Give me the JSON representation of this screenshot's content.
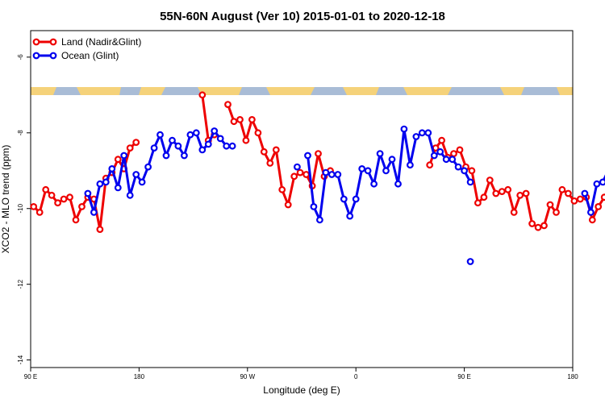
{
  "chart_data": {
    "type": "line",
    "title": "55N-60N August (Ver 10)   2015-01-01 to 2020-12-18",
    "xlabel": "Longitude (deg E)",
    "ylabel": "XCO2 - MLO trend (ppm)",
    "xlim": [
      90,
      450
    ],
    "ylim": [
      -14.2,
      -5.3
    ],
    "x_ticks": [
      {
        "value": 90,
        "label": "90 E"
      },
      {
        "value": 180,
        "label": "180"
      },
      {
        "value": 270,
        "label": "90 W"
      },
      {
        "value": 360,
        "label": "0"
      },
      {
        "value": 450,
        "label": "90 E"
      },
      {
        "value": 540,
        "label": "180"
      }
    ],
    "y_ticks": [
      {
        "value": -6,
        "label": "-6"
      },
      {
        "value": -8,
        "label": "-8"
      },
      {
        "value": -10,
        "label": "-10"
      },
      {
        "value": -12,
        "label": "-12"
      },
      {
        "value": -14,
        "label": "-14"
      }
    ],
    "grid": false,
    "legend": "top-left",
    "series": [
      {
        "name": "Land (Nadir&Glint)",
        "color": "#ee0000",
        "segments": [
          {
            "x": [
              92,
              96,
              100,
              104,
              108,
              112,
              116,
              120,
              124,
              128,
              132,
              136,
              140,
              144,
              148,
              152,
              156,
              160
            ],
            "y": [
              -9.95,
              -10.1,
              -9.5,
              -9.65,
              -9.85,
              -9.75,
              -9.7,
              -10.3,
              -9.95,
              -9.7,
              -9.75,
              -10.55,
              -9.2,
              -9.05,
              -8.7,
              -8.95,
              -8.4,
              -8.25
            ]
          },
          {
            "x": [
              204,
              208,
              212
            ],
            "y": [
              -7.0,
              -8.2,
              -8.05
            ]
          },
          {
            "x": [
              221,
              225,
              229,
              233,
              237,
              241,
              245,
              249,
              253,
              257,
              261,
              265,
              269,
              273,
              277,
              281,
              285,
              289
            ],
            "y": [
              -7.25,
              -7.7,
              -7.65,
              -8.2,
              -7.65,
              -8.0,
              -8.5,
              -8.8,
              -8.45,
              -9.5,
              -9.9,
              -9.15,
              -9.05,
              -9.1,
              -9.4,
              -8.55,
              -9.15,
              -9.0
            ]
          },
          {
            "x": [
              355,
              359,
              363,
              367,
              371,
              375,
              379,
              383,
              387,
              391,
              395,
              399,
              403,
              407,
              411,
              415,
              419,
              423,
              427,
              431,
              435,
              439,
              443,
              447,
              451,
              455,
              459,
              463,
              467,
              471,
              475,
              479,
              483,
              487,
              491
            ],
            "y": [
              -8.85,
              -8.4,
              -8.2,
              -8.65,
              -8.55,
              -8.45,
              -8.9,
              -9.0,
              -9.85,
              -9.7,
              -9.25,
              -9.6,
              -9.55,
              -9.5,
              -10.1,
              -9.65,
              -9.6,
              -10.4,
              -10.5,
              -10.45,
              -9.9,
              -10.1,
              -9.5,
              -9.6,
              -9.8,
              -9.75,
              -9.7,
              -10.3,
              -9.95,
              -9.7,
              -9.75,
              -10.55,
              -9.2,
              -9.05,
              -8.7
            ]
          }
        ]
      },
      {
        "name": "Ocean (Glint)",
        "color": "#0000ee",
        "segments": [
          {
            "x": [
              128,
              132,
              136,
              140,
              144,
              148,
              152,
              156,
              160,
              164,
              168,
              172,
              176,
              180,
              184,
              188,
              192,
              196,
              200,
              204,
              208,
              212,
              216,
              220,
              224
            ],
            "y": [
              -9.6,
              -10.1,
              -9.35,
              -9.3,
              -8.95,
              -9.45,
              -8.6,
              -9.65,
              -9.1,
              -9.3,
              -8.9,
              -8.4,
              -8.05,
              -8.6,
              -8.2,
              -8.35,
              -8.6,
              -8.05,
              -8.0,
              -8.45,
              -8.3,
              -7.95,
              -8.15,
              -8.35,
              -8.35
            ]
          },
          {
            "x": [
              267
            ],
            "y": [
              -8.9
            ]
          },
          {
            "x": [
              274,
              278,
              282,
              286,
              290,
              294,
              298,
              302,
              306,
              310,
              314,
              318,
              322,
              326,
              330,
              334,
              338,
              342,
              346,
              350,
              354,
              358,
              362,
              366,
              370,
              374,
              378,
              382
            ],
            "y": [
              -8.6,
              -9.95,
              -10.3,
              -9.05,
              -9.1,
              -9.1,
              -9.75,
              -10.2,
              -9.75,
              -8.95,
              -9.0,
              -9.35,
              -8.55,
              -9.0,
              -8.7,
              -9.35,
              -7.9,
              -8.85,
              -8.1,
              -8.0,
              -8.0,
              -8.6,
              -8.5,
              -8.7,
              -8.7,
              -8.9,
              -9.0,
              -9.3
            ]
          },
          {
            "x": [
              382
            ],
            "y": [
              -11.4
            ]
          },
          {
            "x": [
              458,
              462,
              466,
              470,
              474,
              478,
              482,
              486,
              490
            ],
            "y": [
              -9.6,
              -10.1,
              -9.35,
              -9.3,
              -8.95,
              -9.45,
              -8.6,
              -9.65,
              -9.1
            ]
          }
        ]
      }
    ]
  }
}
